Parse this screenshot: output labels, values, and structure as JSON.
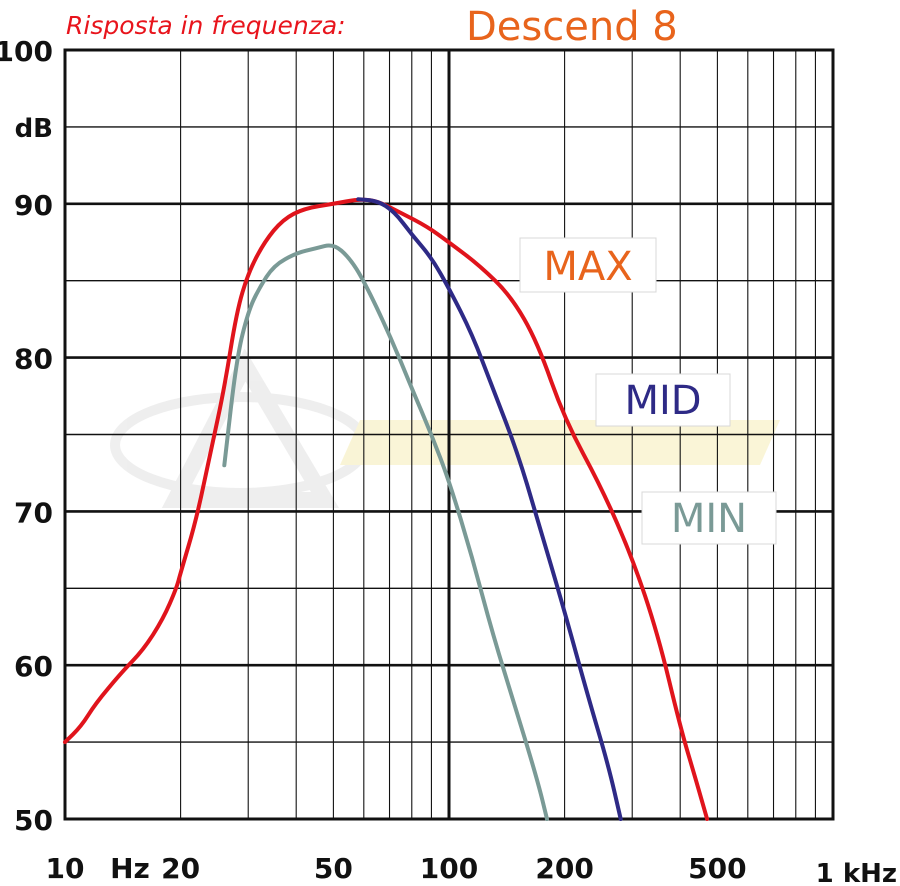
{
  "header": {
    "title": "Risposta in frequenza:",
    "title_color": "#e8141c",
    "product": "Descend 8",
    "product_color": "#e8641c"
  },
  "chart_data": {
    "type": "line",
    "xscale": "log",
    "xlim": [
      10,
      1000
    ],
    "ylim": [
      50,
      100
    ],
    "ylabel": "dB",
    "xunit_labels": {
      "hz": "Hz",
      "khz": "1 kHz"
    },
    "x_ticks": [
      {
        "value": 10,
        "label": "10"
      },
      {
        "value": 20,
        "label": "20"
      },
      {
        "value": 50,
        "label": "50"
      },
      {
        "value": 100,
        "label": "100"
      },
      {
        "value": 200,
        "label": "200"
      },
      {
        "value": 500,
        "label": "500"
      }
    ],
    "y_ticks": [
      {
        "value": 100,
        "label": "100"
      },
      {
        "value": 90,
        "label": "90"
      },
      {
        "value": 80,
        "label": "80"
      },
      {
        "value": 70,
        "label": "70"
      },
      {
        "value": 60,
        "label": "60"
      },
      {
        "value": 50,
        "label": "50"
      }
    ],
    "grid": true,
    "series": [
      {
        "name": "MAX",
        "color": "#e0141c",
        "label_color": "#e8641c",
        "points": [
          [
            10,
            55
          ],
          [
            11,
            56
          ],
          [
            12,
            57.5
          ],
          [
            14,
            59.5
          ],
          [
            16,
            61
          ],
          [
            18,
            63
          ],
          [
            19.5,
            65
          ],
          [
            20,
            66
          ],
          [
            22,
            69.5
          ],
          [
            24,
            74
          ],
          [
            26,
            78
          ],
          [
            28,
            83
          ],
          [
            30,
            85.5
          ],
          [
            33,
            87.5
          ],
          [
            37,
            89
          ],
          [
            42,
            89.7
          ],
          [
            50,
            90
          ],
          [
            58,
            90.3
          ],
          [
            65,
            90.2
          ],
          [
            75,
            89.4
          ],
          [
            88,
            88.5
          ],
          [
            100,
            87.5
          ],
          [
            120,
            86
          ],
          [
            145,
            84
          ],
          [
            170,
            81
          ],
          [
            200,
            76
          ],
          [
            250,
            71.5
          ],
          [
            300,
            67
          ],
          [
            350,
            62
          ],
          [
            400,
            56
          ],
          [
            440,
            52.5
          ],
          [
            470,
            50
          ]
        ]
      },
      {
        "name": "MID",
        "color": "#2e2a86",
        "label_color": "#2e2a86",
        "points": [
          [
            58,
            90.3
          ],
          [
            65,
            90.2
          ],
          [
            72,
            89.5
          ],
          [
            80,
            88
          ],
          [
            90,
            86.5
          ],
          [
            100,
            84.5
          ],
          [
            115,
            81.5
          ],
          [
            130,
            78
          ],
          [
            150,
            74
          ],
          [
            170,
            69.5
          ],
          [
            200,
            63.5
          ],
          [
            230,
            58
          ],
          [
            260,
            53.5
          ],
          [
            280,
            50
          ]
        ]
      },
      {
        "name": "MIN",
        "color": "#7a9a96",
        "label_color": "#7a9a96",
        "points": [
          [
            26,
            73
          ],
          [
            28,
            80
          ],
          [
            30,
            83
          ],
          [
            32,
            84.5
          ],
          [
            35,
            86
          ],
          [
            40,
            86.8
          ],
          [
            45,
            87.1
          ],
          [
            50,
            87.4
          ],
          [
            55,
            86.5
          ],
          [
            60,
            85
          ],
          [
            70,
            81.5
          ],
          [
            80,
            78
          ],
          [
            90,
            75
          ],
          [
            100,
            72
          ],
          [
            115,
            67
          ],
          [
            130,
            62
          ],
          [
            150,
            57
          ],
          [
            170,
            52.5
          ],
          [
            180,
            50
          ]
        ]
      }
    ]
  }
}
